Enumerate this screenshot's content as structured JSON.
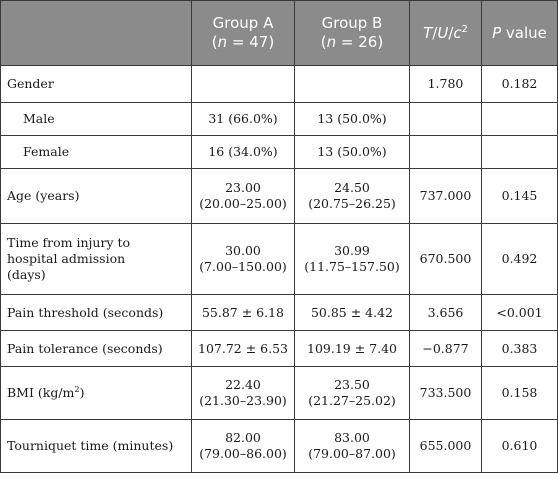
{
  "header": {
    "col_variable": "",
    "group_a": {
      "name": "Group A",
      "n_label": "n",
      "n_eq": " = 47"
    },
    "group_b": {
      "name": "Group B",
      "n_label": "n",
      "n_eq": " = 26"
    },
    "stat": {
      "t": "T",
      "u": "U",
      "c": "c",
      "exp": "2",
      "sep": "/"
    },
    "p": {
      "p": "P",
      "rest": " value"
    }
  },
  "rows": [
    {
      "label": "Gender",
      "a": "",
      "a2": "",
      "b": "",
      "b2": "",
      "stat": "1.780",
      "p": "0.182"
    },
    {
      "label": "Male",
      "a": "31 (66.0%)",
      "a2": "",
      "b": "13 (50.0%)",
      "b2": "",
      "stat": "",
      "p": ""
    },
    {
      "label": "Female",
      "a": "16 (34.0%)",
      "a2": "",
      "b": "13 (50.0%)",
      "b2": "",
      "stat": "",
      "p": ""
    },
    {
      "label": "Age (years)",
      "a": "23.00",
      "a2": "(20.00–25.00)",
      "b": "24.50",
      "b2": "(20.75–26.25)",
      "stat": "737.000",
      "p": "0.145"
    },
    {
      "label_l1": "Time from injury to",
      "label_l2": "hospital admission",
      "label_l3": "(days)",
      "a": "30.00",
      "a2": "(7.00–150.00)",
      "b": "30.99",
      "b2": "(11.75–157.50)",
      "stat": "670.500",
      "p": "0.492"
    },
    {
      "label": "Pain threshold (seconds)",
      "a": "55.87 ± 6.18",
      "b": "50.85 ± 4.42",
      "stat": "3.656",
      "p": "<0.001"
    },
    {
      "label": "Pain tolerance (seconds)",
      "a": "107.72 ± 6.53",
      "b": "109.19 ± 7.40",
      "stat": "−0.877",
      "p": "0.383"
    },
    {
      "label_pre": "BMI (kg/m",
      "label_sup": "2",
      "label_post": ")",
      "a": "22.40",
      "a2": "(21.30–23.90)",
      "b": "23.50",
      "b2": "(21.27–25.02)",
      "stat": "733.500",
      "p": "0.158"
    },
    {
      "label": "Tourniquet time (minutes)",
      "a": "82.00",
      "a2": "(79.00–86.00)",
      "b": "83.00",
      "b2": "(79.00–87.00)",
      "stat": "655.000",
      "p": "0.610"
    }
  ]
}
